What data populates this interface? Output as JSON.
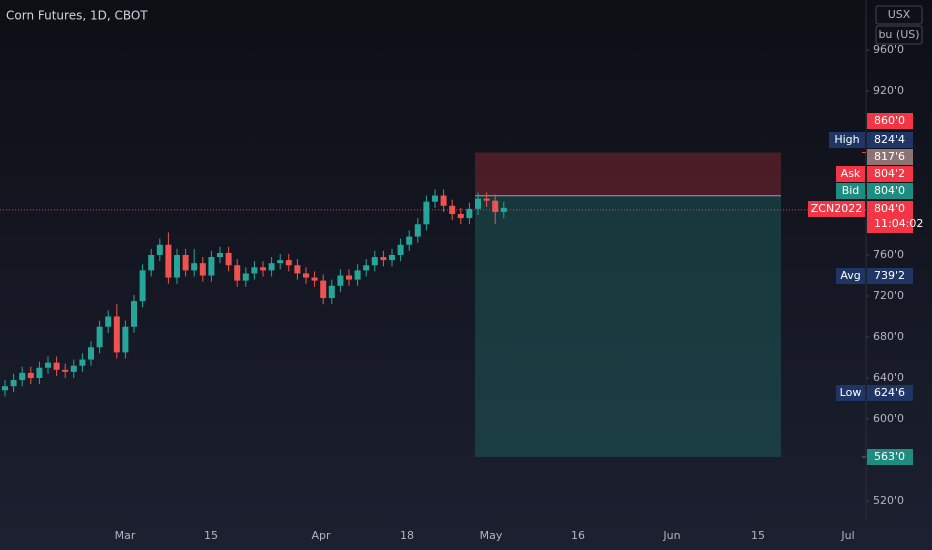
{
  "chart_data": {
    "type": "candlestick",
    "title": "Corn Futures, 1D, CBOT",
    "buttons": [
      "USX",
      "bu (US)"
    ],
    "yticks": [
      {
        "value": 960,
        "label": "960'0"
      },
      {
        "value": 920,
        "label": "920'0"
      },
      {
        "value": 760,
        "label": "760'0"
      },
      {
        "value": 720,
        "label": "720'0"
      },
      {
        "value": 680,
        "label": "680'0"
      },
      {
        "value": 640,
        "label": "640'0"
      },
      {
        "value": 600,
        "label": "600'0"
      },
      {
        "value": 520,
        "label": "520'0"
      }
    ],
    "xaxis_labels": [
      "Mar",
      "15",
      "Apr",
      "18",
      "May",
      "16",
      "Jun",
      "15",
      "Jul"
    ],
    "up_color": "#26a69a",
    "down_color": "#ef5350",
    "open": [
      628,
      632,
      638,
      645,
      640,
      650,
      655,
      648,
      646,
      652,
      658,
      670,
      690,
      700,
      665,
      690,
      715,
      745,
      760,
      770,
      738,
      760,
      745,
      752,
      740,
      758,
      762,
      750,
      735,
      742,
      748,
      745,
      752,
      755,
      750,
      742,
      738,
      735,
      718,
      730,
      740,
      736,
      745,
      750,
      758,
      755,
      760,
      770,
      778,
      790,
      812,
      818,
      808,
      800,
      796,
      805,
      815,
      813,
      802
    ],
    "high": [
      638,
      644,
      651,
      651,
      656,
      661,
      661,
      654,
      658,
      664,
      676,
      696,
      706,
      712,
      696,
      721,
      751,
      766,
      776,
      782,
      766,
      766,
      766,
      758,
      764,
      768,
      768,
      756,
      748,
      754,
      754,
      758,
      761,
      761,
      756,
      748,
      744,
      741,
      736,
      746,
      746,
      751,
      756,
      764,
      764,
      766,
      776,
      784,
      796,
      818,
      824,
      824,
      814,
      806,
      811,
      821,
      821,
      819,
      812
    ],
    "low": [
      622,
      626,
      632,
      634,
      634,
      644,
      642,
      640,
      640,
      646,
      652,
      664,
      684,
      659,
      659,
      684,
      709,
      739,
      754,
      732,
      732,
      739,
      739,
      734,
      734,
      752,
      744,
      729,
      729,
      736,
      739,
      739,
      746,
      744,
      736,
      732,
      729,
      712,
      712,
      724,
      730,
      730,
      739,
      744,
      749,
      749,
      754,
      764,
      772,
      784,
      806,
      802,
      794,
      790,
      790,
      799,
      807,
      790,
      796
    ],
    "close": [
      632,
      638,
      645,
      640,
      650,
      655,
      648,
      646,
      652,
      658,
      670,
      690,
      700,
      665,
      690,
      715,
      745,
      760,
      770,
      738,
      760,
      745,
      752,
      740,
      758,
      762,
      750,
      735,
      742,
      748,
      745,
      752,
      755,
      750,
      742,
      738,
      735,
      718,
      730,
      740,
      736,
      745,
      750,
      758,
      755,
      760,
      770,
      778,
      790,
      812,
      818,
      808,
      800,
      796,
      805,
      815,
      813,
      802,
      806
    ],
    "position": {
      "stop": 860,
      "entry": 817.75,
      "target": 563
    },
    "price_tags": [
      {
        "value": 860,
        "label": "860'0",
        "color": "#f23645"
      },
      {
        "name": "High",
        "value": 824.5,
        "label": "824'4",
        "color": "#1f3565"
      },
      {
        "value": 817.75,
        "label": "817'6",
        "color": "#8c7474"
      },
      {
        "name": "Ask",
        "value": 804.25,
        "label": "804'2",
        "color": "#f23645"
      },
      {
        "name": "Bid",
        "value": 804,
        "label": "804'0",
        "color": "#1f8c80"
      },
      {
        "name": "ZCN2022",
        "value": 804,
        "label": "804'0",
        "countdown": "11:04:02",
        "color": "#f23645"
      },
      {
        "name": "Avg",
        "value": 739.25,
        "label": "739'2",
        "color": "#1f3565"
      },
      {
        "name": "Low",
        "value": 624.75,
        "label": "624'6",
        "color": "#1f3565"
      },
      {
        "value": 563,
        "label": "563'0",
        "color": "#1f8c80"
      }
    ]
  }
}
